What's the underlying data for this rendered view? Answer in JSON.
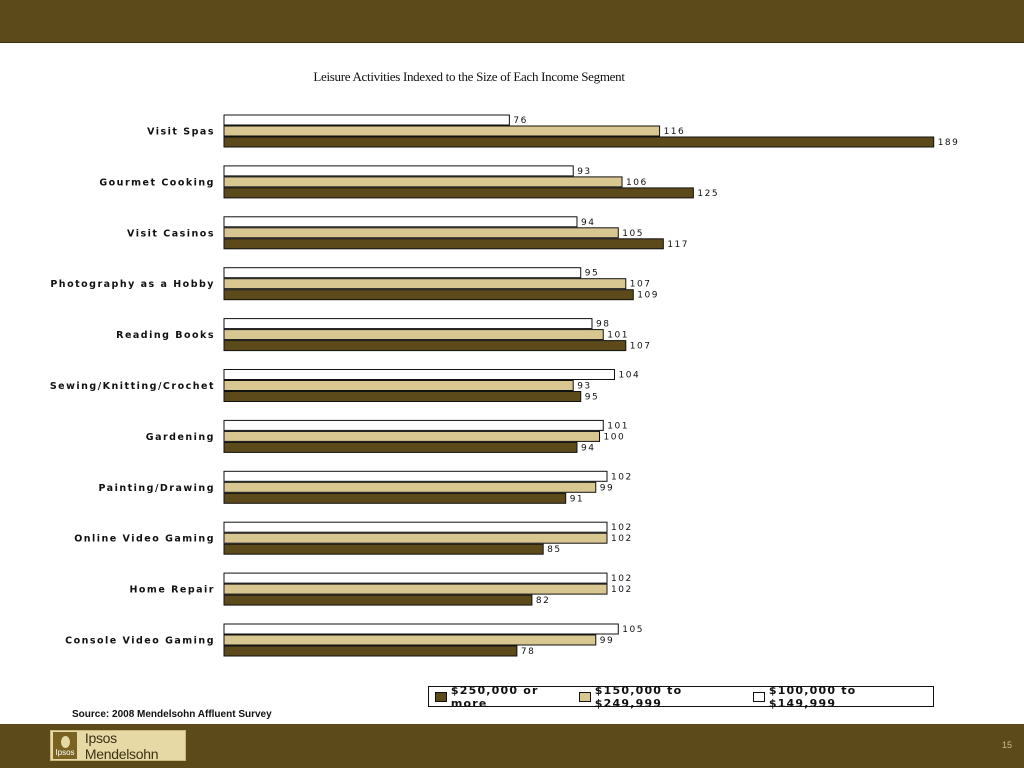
{
  "footer": {
    "source": "Source: 2008 Mendelsohn Affluent Survey",
    "logo_text": "Ipsos Mendelsohn",
    "logo_mark_text": "Ipsos",
    "page_number": "15"
  },
  "colors": {
    "bar_band": "#5c4a1b",
    "series_250k": "#5c4a1b",
    "series_150k": "#d9c791",
    "series_100k": "#ffffff"
  },
  "chart_data": {
    "type": "bar",
    "orientation": "horizontal",
    "title": "Leisure Activities Indexed to the Size of Each Income Segment",
    "categories": [
      "Visit Spas",
      "Gourmet Cooking",
      "Visit Casinos",
      "Photography as a Hobby",
      "Reading Books",
      "Sewing/Knitting/Crochet",
      "Gardening",
      "Painting/Drawing",
      "Online Video Gaming",
      "Home Repair",
      "Console Video Gaming"
    ],
    "series": [
      {
        "name": "$100,000 to $149,999",
        "color": "#ffffff",
        "values": [
          76,
          93,
          94,
          95,
          98,
          104,
          101,
          102,
          102,
          102,
          105
        ]
      },
      {
        "name": "$150,000 to $249,999",
        "color": "#d9c791",
        "values": [
          116,
          106,
          105,
          107,
          101,
          93,
          100,
          99,
          102,
          102,
          99
        ]
      },
      {
        "name": "$250,000 or more",
        "color": "#5c4a1b",
        "values": [
          189,
          125,
          117,
          109,
          107,
          95,
          94,
          91,
          85,
          82,
          78
        ]
      }
    ],
    "legend_order": [
      "$250,000 or more",
      "$150,000 to $249,999",
      "$100,000 to $149,999"
    ],
    "legend_position": "bottom-right",
    "grid": false,
    "xlim": [
      0,
      190
    ]
  }
}
